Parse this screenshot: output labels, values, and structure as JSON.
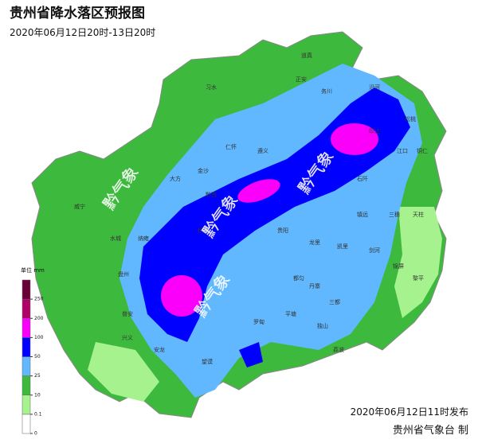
{
  "header": {
    "title": "贵州省降水落区预报图",
    "subtitle": "2020年06月12日20时-13日20时"
  },
  "legend": {
    "unit": "单位 mm",
    "ticks": [
      0,
      0.1,
      10,
      25,
      50,
      100,
      200,
      250
    ],
    "colors": [
      "#ffffff",
      "#a6f28f",
      "#3dba3d",
      "#61b8ff",
      "#0000fe",
      "#fa00fa",
      "#b0006a",
      "#6a0038"
    ]
  },
  "watermarks": [
    "黔气象",
    "黔气象",
    "黔气象",
    "黔气象"
  ],
  "places": [
    "道真",
    "正安",
    "习水",
    "务川",
    "沿河",
    "遵义",
    "仁怀",
    "印江",
    "江口",
    "铜仁",
    "松桃",
    "金沙",
    "大方",
    "黔西",
    "石阡",
    "镇远",
    "三穗",
    "天柱",
    "织金",
    "贵阳",
    "龙里",
    "凯里",
    "剑河",
    "锦屏",
    "黎平",
    "都匀",
    "丹寨",
    "三都",
    "平塘",
    "独山",
    "荔波",
    "罗甸",
    "望谟",
    "安龙",
    "兴义",
    "普安",
    "盘州",
    "水城",
    "纳雍",
    "威宁"
  ],
  "footer": {
    "date": "2020年06月12日11时发布",
    "issuer": "贵州省气象台 制"
  }
}
